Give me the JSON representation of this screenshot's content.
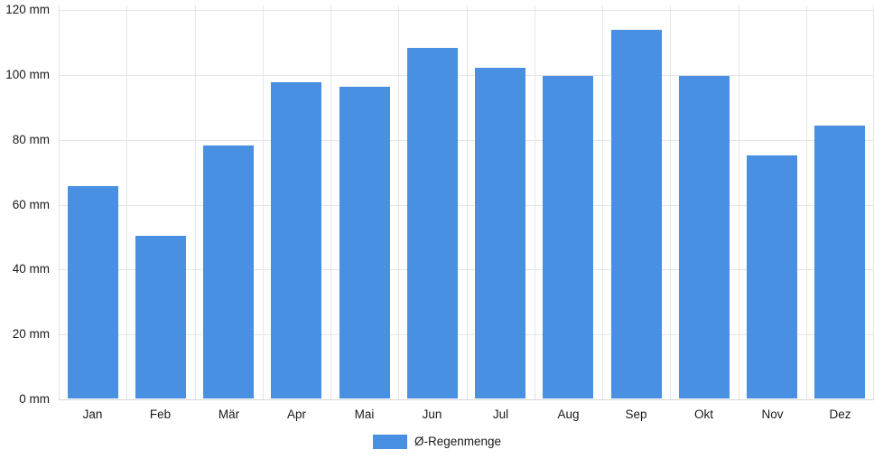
{
  "chart_data": {
    "type": "bar",
    "title": "",
    "xlabel": "",
    "ylabel": "",
    "unit": "mm",
    "categories": [
      "Jan",
      "Feb",
      "Mär",
      "Apr",
      "Mai",
      "Jun",
      "Jul",
      "Aug",
      "Sep",
      "Okt",
      "Nov",
      "Dez"
    ],
    "series": [
      {
        "name": "Ø-Regenmenge",
        "values": [
          65.5,
          50,
          78,
          97.5,
          96,
          108,
          102,
          99.5,
          113.5,
          99.5,
          75,
          84
        ]
      }
    ],
    "ylim": [
      0,
      120
    ],
    "y_tick_values": [
      0,
      20,
      40,
      60,
      80,
      100,
      120
    ],
    "y_tick_labels": [
      "0 mm",
      "20 mm",
      "40 mm",
      "60 mm",
      "80 mm",
      "100 mm",
      "120 mm"
    ],
    "grid": true,
    "legend_position": "bottom-center"
  },
  "legend": {
    "label": "Ø-Regenmenge"
  },
  "colors": {
    "bar": "#4a90e2",
    "gridline": "#e5e5e5",
    "baseline": "#d6d6d6",
    "text": "#1a1a1a"
  }
}
